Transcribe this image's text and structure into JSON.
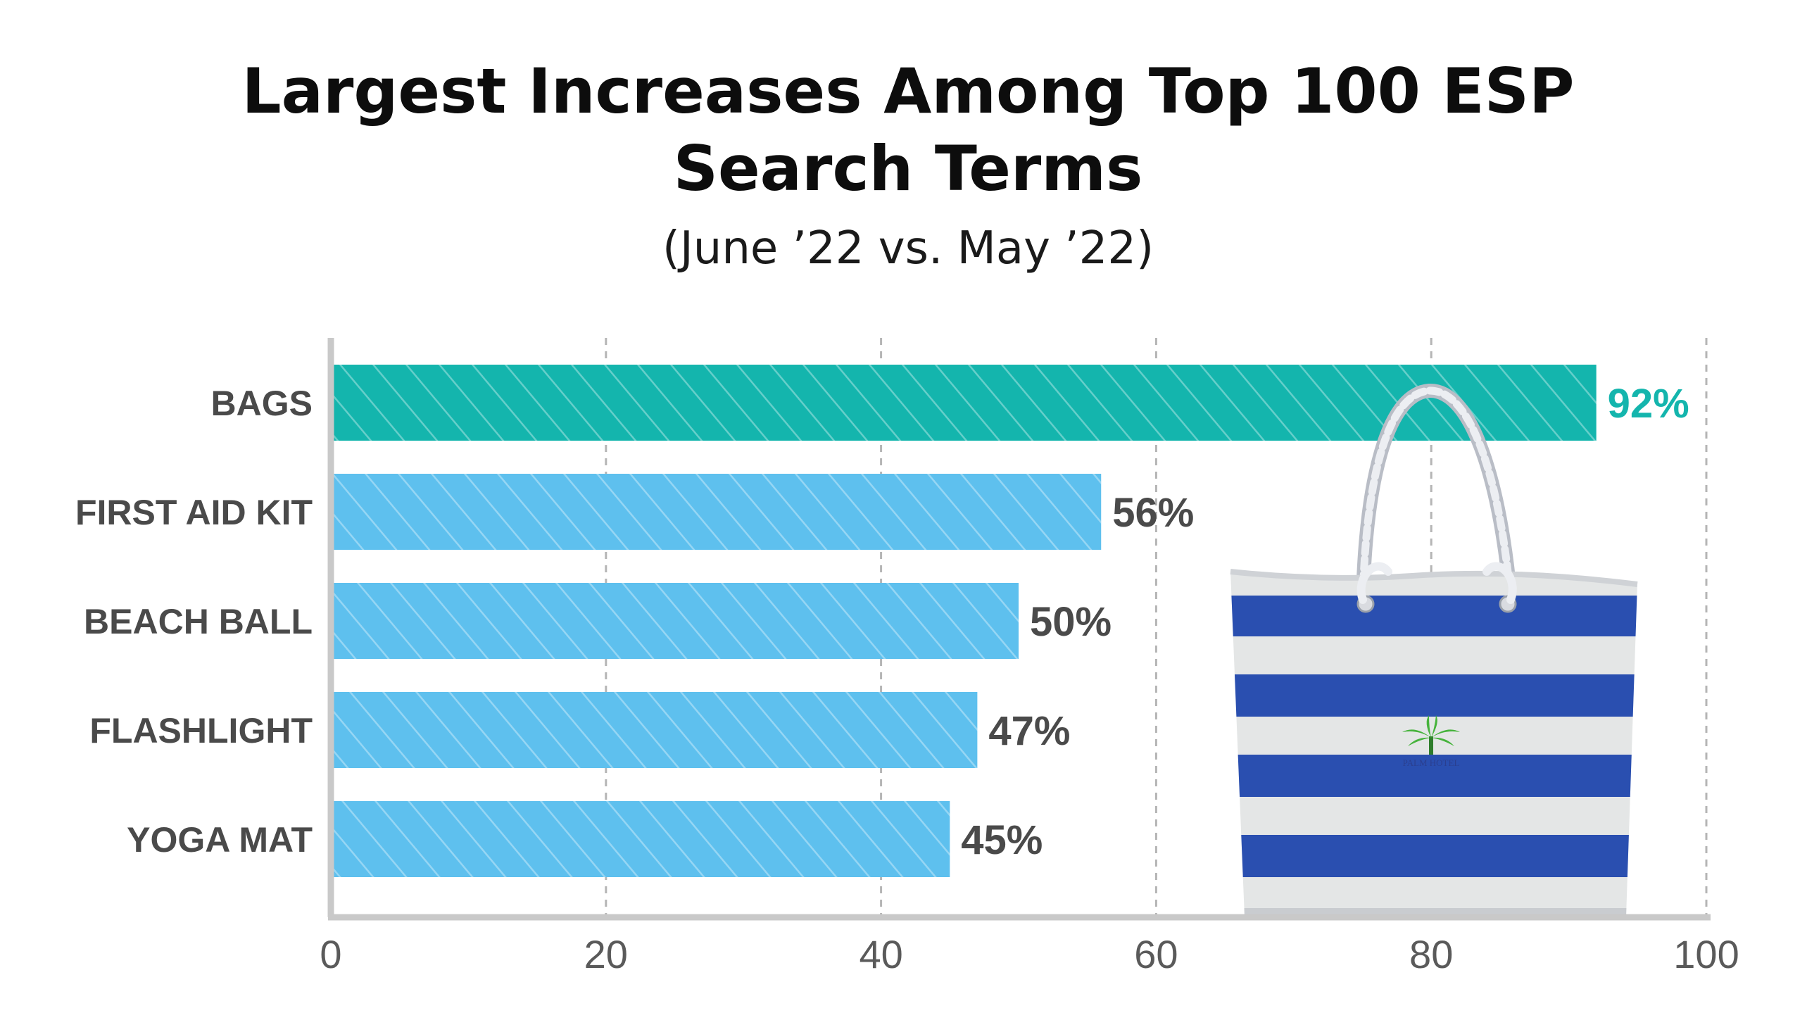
{
  "chart_data": {
    "type": "bar",
    "orientation": "horizontal",
    "title": "Largest Increases Among Top 100 ESP Search Terms",
    "title_lines": [
      "Largest Increases Among Top 100 ESP",
      "Search Terms"
    ],
    "subtitle": "(June ’22 vs. May ’22)",
    "categories": [
      "BAGS",
      "FIRST AID KIT",
      "BEACH BALL",
      "FLASHLIGHT",
      "YOGA MAT"
    ],
    "values": [
      92,
      56,
      50,
      47,
      45
    ],
    "value_labels": [
      "92%",
      "56%",
      "50%",
      "47%",
      "45%"
    ],
    "xlim": [
      0,
      100
    ],
    "x_ticks": [
      0,
      20,
      40,
      60,
      80,
      100
    ],
    "x_tick_labels": [
      "0",
      "20",
      "40",
      "60",
      "80",
      "100"
    ],
    "xlabel": "",
    "ylabel": "",
    "grid": "vertical dashed",
    "highlight_index": 0,
    "colors": {
      "highlight": "#14b5ad",
      "bar": "#5ec0ee",
      "value_default": "#4a4a4a",
      "value_highlight": "#14b5ad",
      "axis": "#c9c9c9",
      "grid": "#b5b5b5"
    }
  },
  "illustration": {
    "icon": "striped-tote-bag",
    "logo_text": "PALM HOTEL",
    "colors": {
      "stripe_blue": "#2a4fb0",
      "stripe_light": "#e4e6e6",
      "rope": "#dfe1e6"
    }
  }
}
